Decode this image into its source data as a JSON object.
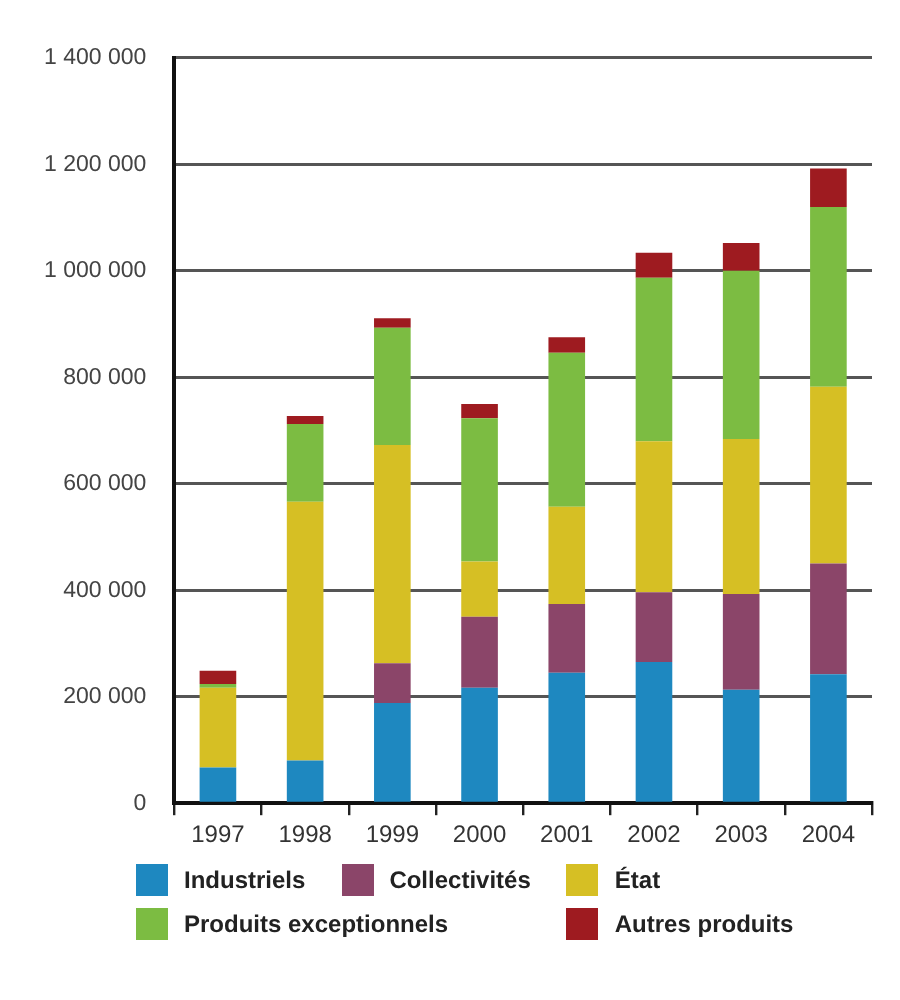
{
  "chart_data": {
    "type": "bar",
    "stacked": true,
    "categories": [
      "1997",
      "1998",
      "1999",
      "2000",
      "2001",
      "2002",
      "2003",
      "2004"
    ],
    "series": [
      {
        "name": "Industriels",
        "color": "#1e88c0",
        "values": [
          67000,
          80000,
          188000,
          217000,
          245000,
          265000,
          213000,
          242000
        ]
      },
      {
        "name": "Collectivités",
        "color": "#8b4569",
        "values": [
          0,
          0,
          75000,
          133000,
          129000,
          131000,
          180000,
          208000
        ]
      },
      {
        "name": "État",
        "color": "#d6bf24",
        "values": [
          150000,
          486000,
          410000,
          104000,
          183000,
          284000,
          291000,
          332000
        ]
      },
      {
        "name": "Produits exceptionnels",
        "color": "#7cbc42",
        "values": [
          7000,
          146000,
          220000,
          269000,
          289000,
          307000,
          316000,
          338000
        ]
      },
      {
        "name": "Autres produits",
        "color": "#9e1b20",
        "values": [
          25000,
          15000,
          18000,
          27000,
          29000,
          47000,
          52000,
          72000
        ]
      }
    ],
    "ylim": [
      0,
      1400000
    ],
    "yticks": [
      {
        "value": 0,
        "label": "0"
      },
      {
        "value": 200000,
        "label": "200 000"
      },
      {
        "value": 400000,
        "label": "400 000"
      },
      {
        "value": 600000,
        "label": "600 000"
      },
      {
        "value": 800000,
        "label": "800 000"
      },
      {
        "value": 1000000,
        "label": "1 000 000"
      },
      {
        "value": 1200000,
        "label": "1 200 000"
      },
      {
        "value": 1400000,
        "label": "1 400 000"
      }
    ],
    "grid": "y",
    "legend": "bottom"
  }
}
